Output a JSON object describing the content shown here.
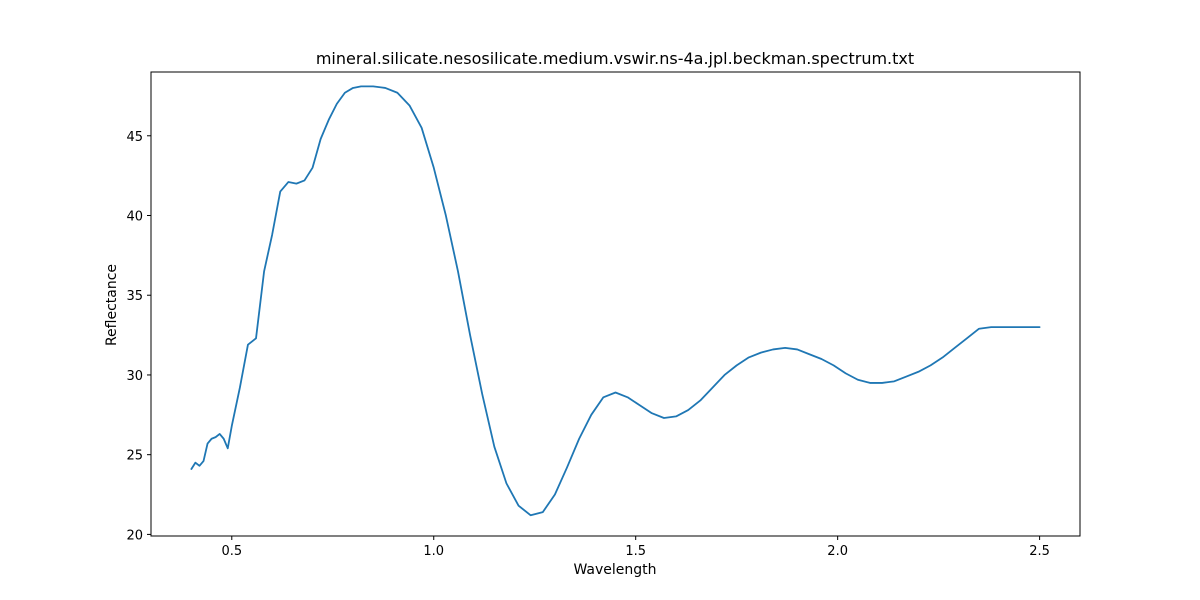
{
  "chart_data": {
    "type": "line",
    "title": "mineral.silicate.nesosilicate.medium.vswir.ns-4a.jpl.beckman.spectrum.txt",
    "xlabel": "Wavelength",
    "ylabel": "Reflectance",
    "xlim": [
      0.3,
      2.6
    ],
    "ylim": [
      19.9,
      49.0
    ],
    "xticks": [
      0.5,
      1.0,
      1.5,
      2.0,
      2.5
    ],
    "xtick_labels": [
      "0.5",
      "1.0",
      "1.5",
      "2.0",
      "2.5"
    ],
    "yticks": [
      20,
      25,
      30,
      35,
      40,
      45
    ],
    "ytick_labels": [
      "20",
      "25",
      "30",
      "35",
      "40",
      "45"
    ],
    "grid": false,
    "series": [
      {
        "color": "#1f77b4",
        "x": [
          0.4,
          0.41,
          0.42,
          0.43,
          0.44,
          0.45,
          0.46,
          0.47,
          0.48,
          0.49,
          0.5,
          0.52,
          0.54,
          0.56,
          0.58,
          0.6,
          0.62,
          0.64,
          0.66,
          0.68,
          0.7,
          0.72,
          0.74,
          0.76,
          0.78,
          0.8,
          0.82,
          0.85,
          0.88,
          0.91,
          0.94,
          0.97,
          1.0,
          1.03,
          1.06,
          1.09,
          1.12,
          1.15,
          1.18,
          1.21,
          1.24,
          1.27,
          1.3,
          1.33,
          1.36,
          1.39,
          1.42,
          1.45,
          1.48,
          1.51,
          1.54,
          1.57,
          1.6,
          1.63,
          1.66,
          1.69,
          1.72,
          1.75,
          1.78,
          1.81,
          1.84,
          1.87,
          1.9,
          1.93,
          1.96,
          1.99,
          2.02,
          2.05,
          2.08,
          2.11,
          2.14,
          2.17,
          2.2,
          2.23,
          2.26,
          2.29,
          2.32,
          2.35,
          2.38,
          2.41,
          2.44,
          2.47,
          2.5
        ],
        "y": [
          24.1,
          24.5,
          24.3,
          24.6,
          25.7,
          26.0,
          26.1,
          26.3,
          26.0,
          25.4,
          26.8,
          29.2,
          31.9,
          32.3,
          36.5,
          38.8,
          41.5,
          42.1,
          42.0,
          42.2,
          43.0,
          44.8,
          46.0,
          47.0,
          47.7,
          48.0,
          48.1,
          48.1,
          48.0,
          47.7,
          46.9,
          45.5,
          43.0,
          40.0,
          36.5,
          32.5,
          28.8,
          25.5,
          23.2,
          21.8,
          21.2,
          21.4,
          22.5,
          24.2,
          26.0,
          27.5,
          28.6,
          28.9,
          28.6,
          28.1,
          27.6,
          27.3,
          27.4,
          27.8,
          28.4,
          29.2,
          30.0,
          30.6,
          31.1,
          31.4,
          31.6,
          31.7,
          31.6,
          31.3,
          31.0,
          30.6,
          30.1,
          29.7,
          29.5,
          29.5,
          29.6,
          29.9,
          30.2,
          30.6,
          31.1,
          31.7,
          32.3,
          32.9,
          33.0,
          33.0,
          33.0,
          33.0,
          33.0
        ]
      }
    ]
  }
}
